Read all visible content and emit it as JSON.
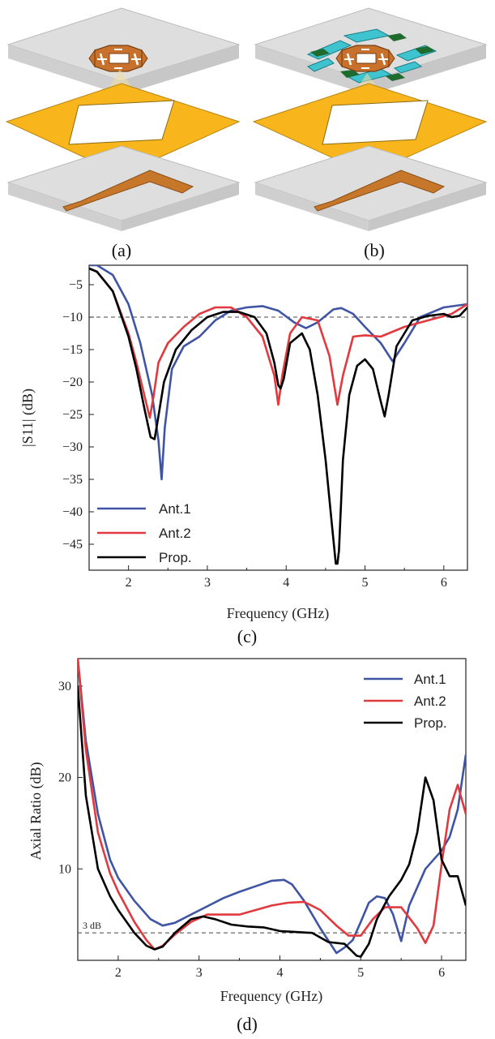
{
  "captions": {
    "a": "(a)",
    "b": "(b)",
    "c": "(c)",
    "d": "(d)"
  },
  "colors": {
    "ant1": "#3f55a4",
    "ant2": "#e0393e",
    "prop": "#000000",
    "substrate": "#d9d9d9",
    "ground": "#f8b61c",
    "feed": "#c7772a",
    "patch": "#c7712c",
    "parasitic_blue": "#3fc3cf",
    "parasitic_green": "#1f6b2e"
  },
  "chart_data": [
    {
      "type": "line",
      "xlabel": "Frequency (GHz)",
      "ylabel": "|S11| (dB)",
      "xlim": [
        1.5,
        6.3
      ],
      "ylim": [
        -49,
        -2
      ],
      "xticks": [
        "2",
        "3",
        "4",
        "5",
        "6"
      ],
      "yticks": [
        "-5",
        "-10",
        "-15",
        "-20",
        "-25",
        "-30",
        "-35",
        "-40",
        "-45"
      ],
      "reference_line": -10,
      "legend_position": "bottom-left",
      "series": [
        {
          "name": "Ant.1",
          "color": "#3f55a4",
          "x": [
            1.5,
            1.6,
            1.8,
            2.0,
            2.15,
            2.3,
            2.38,
            2.42,
            2.46,
            2.55,
            2.7,
            2.9,
            3.1,
            3.3,
            3.5,
            3.7,
            3.9,
            4.1,
            4.25,
            4.4,
            4.6,
            4.7,
            4.85,
            5.0,
            5.2,
            5.35,
            5.5,
            5.7,
            6.0,
            6.3
          ],
          "y": [
            -2,
            -2,
            -3.5,
            -8,
            -14,
            -22,
            -29,
            -35,
            -27,
            -18,
            -14.5,
            -13,
            -10.5,
            -9,
            -8.5,
            -8.3,
            -9,
            -10.8,
            -11.7,
            -10.8,
            -8.8,
            -8.6,
            -9.5,
            -11.5,
            -14,
            -16.8,
            -14,
            -10,
            -8.5,
            -8
          ]
        },
        {
          "name": "Ant.2",
          "color": "#e0393e",
          "x": [
            1.5,
            1.6,
            1.8,
            2.0,
            2.1,
            2.2,
            2.27,
            2.32,
            2.38,
            2.5,
            2.7,
            2.9,
            3.1,
            3.3,
            3.5,
            3.7,
            3.85,
            3.9,
            3.95,
            4.05,
            4.2,
            4.4,
            4.55,
            4.65,
            4.72,
            4.85,
            5.0,
            5.2,
            5.5,
            5.8,
            6.1,
            6.3
          ],
          "y": [
            -2.5,
            -3,
            -6,
            -12.5,
            -17,
            -22,
            -25.5,
            -22,
            -17,
            -14,
            -11.5,
            -9.5,
            -8.5,
            -8.5,
            -10,
            -13,
            -19,
            -23.5,
            -19,
            -12.5,
            -10,
            -10.5,
            -16,
            -23.5,
            -19,
            -13,
            -12.8,
            -13,
            -11.5,
            -10.5,
            -9.5,
            -8
          ]
        },
        {
          "name": "Prop.",
          "color": "#000000",
          "x": [
            1.5,
            1.6,
            1.8,
            2.0,
            2.1,
            2.2,
            2.28,
            2.33,
            2.37,
            2.45,
            2.6,
            2.8,
            3.0,
            3.2,
            3.4,
            3.6,
            3.75,
            3.85,
            3.9,
            3.93,
            3.97,
            4.05,
            4.2,
            4.3,
            4.4,
            4.5,
            4.58,
            4.63,
            4.65,
            4.67,
            4.72,
            4.8,
            4.9,
            5.0,
            5.1,
            5.2,
            5.25,
            5.3,
            5.4,
            5.6,
            5.8,
            6.0,
            6.1,
            6.2,
            6.3
          ],
          "y": [
            -2.5,
            -3,
            -6,
            -13,
            -18,
            -24,
            -28.5,
            -28.8,
            -26,
            -20,
            -15,
            -12,
            -10,
            -9.2,
            -9.2,
            -10,
            -12.5,
            -17,
            -20.5,
            -21,
            -19.5,
            -14,
            -12.5,
            -15,
            -22,
            -32,
            -42,
            -48,
            -48,
            -46,
            -32,
            -22,
            -17.5,
            -16.5,
            -18,
            -23,
            -25.3,
            -22,
            -14.5,
            -10.5,
            -9.8,
            -9.5,
            -10,
            -9.8,
            -8.5
          ]
        }
      ]
    },
    {
      "type": "line",
      "xlabel": "Frequency (GHz)",
      "ylabel": "Axial Ratio (dB)",
      "xlim": [
        1.5,
        6.3
      ],
      "ylim": [
        0,
        33
      ],
      "xticks": [
        "2",
        "3",
        "4",
        "5",
        "6"
      ],
      "yticks": [
        "10",
        "20",
        "30"
      ],
      "reference_line": 3,
      "reference_label": "3 dB",
      "legend_position": "top-right",
      "series": [
        {
          "name": "Ant.1",
          "color": "#3f55a4",
          "x": [
            1.5,
            1.6,
            1.75,
            1.9,
            2.0,
            2.2,
            2.4,
            2.55,
            2.7,
            2.9,
            3.1,
            3.3,
            3.5,
            3.7,
            3.9,
            4.05,
            4.15,
            4.3,
            4.5,
            4.7,
            4.8,
            4.9,
            5.0,
            5.1,
            5.2,
            5.3,
            5.4,
            5.5,
            5.6,
            5.8,
            6.0,
            6.1,
            6.2,
            6.3
          ],
          "y": [
            33,
            24,
            16,
            11,
            9,
            6.5,
            4.5,
            3.8,
            4.1,
            5.0,
            5.9,
            6.8,
            7.5,
            8.1,
            8.7,
            8.8,
            8.3,
            6.5,
            3.5,
            0.8,
            1.4,
            2.2,
            4.2,
            6.3,
            7.0,
            6.8,
            5.0,
            2.1,
            6.0,
            10.0,
            12.0,
            13.5,
            16.5,
            22.5
          ]
        },
        {
          "name": "Ant.2",
          "color": "#e0393e",
          "x": [
            1.5,
            1.6,
            1.75,
            1.9,
            2.0,
            2.2,
            2.35,
            2.45,
            2.55,
            2.7,
            2.9,
            3.1,
            3.3,
            3.5,
            3.7,
            3.9,
            4.1,
            4.3,
            4.5,
            4.7,
            4.85,
            5.0,
            5.15,
            5.3,
            5.5,
            5.7,
            5.8,
            5.9,
            6.0,
            6.1,
            6.2,
            6.3
          ],
          "y": [
            33,
            23,
            14,
            9.5,
            7.5,
            4.2,
            2.2,
            1.2,
            1.6,
            2.8,
            4.2,
            5.0,
            5.0,
            5.0,
            5.5,
            6.0,
            6.3,
            6.4,
            5.5,
            3.8,
            2.7,
            2.7,
            4.5,
            5.8,
            5.8,
            3.5,
            1.9,
            3.8,
            10.5,
            16.5,
            19.2,
            16.0
          ]
        },
        {
          "name": "Prop.",
          "color": "#000000",
          "x": [
            1.5,
            1.6,
            1.75,
            1.9,
            2.0,
            2.2,
            2.35,
            2.45,
            2.55,
            2.7,
            2.9,
            3.05,
            3.2,
            3.4,
            3.6,
            3.8,
            4.0,
            4.2,
            4.4,
            4.6,
            4.8,
            4.95,
            5.0,
            5.1,
            5.2,
            5.35,
            5.5,
            5.6,
            5.7,
            5.8,
            5.9,
            6.0,
            6.1,
            6.2,
            6.3
          ],
          "y": [
            30,
            18,
            10,
            7,
            5.5,
            3,
            1.6,
            1.2,
            1.5,
            3,
            4.5,
            4.8,
            4.5,
            3.9,
            3.7,
            3.6,
            3.2,
            3.1,
            3.0,
            2.0,
            1.8,
            0.5,
            0.4,
            1.8,
            4.5,
            7.0,
            8.8,
            10.5,
            14.0,
            20.0,
            17.5,
            11.0,
            9.2,
            9.2,
            6.0
          ]
        }
      ]
    }
  ]
}
